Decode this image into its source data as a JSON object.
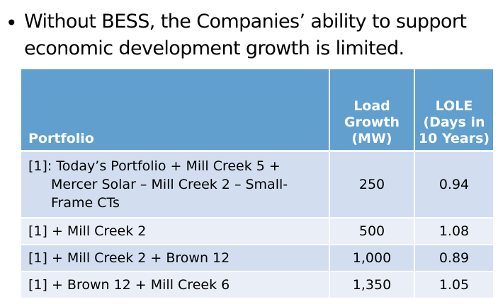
{
  "bullet": {
    "dot": "•",
    "text": "Without BESS, the Companies’ ability to support economic development growth is limited."
  },
  "table": {
    "headers": {
      "portfolio": "Portfolio",
      "load_growth": "Load Growth (MW)",
      "lole": "LOLE (Days in 10 Years)"
    },
    "rows": [
      {
        "portfolio": "[1]: Today’s Portfolio + Mill Creek 5 + Mercer Solar – Mill Creek 2 – Small-Frame CTs",
        "load_growth": "250",
        "lole": "0.94"
      },
      {
        "portfolio": "[1] + Mill Creek 2",
        "load_growth": "500",
        "lole": "1.08"
      },
      {
        "portfolio": "[1] + Mill Creek 2 + Brown 12",
        "load_growth": "1,000",
        "lole": "0.89"
      },
      {
        "portfolio": "[1] + Brown 12 + Mill Creek 6",
        "load_growth": "1,350",
        "lole": "1.05"
      }
    ]
  },
  "colors": {
    "header_bg": "#609fce",
    "row_dark": "#d2deef",
    "row_light": "#eaeff7"
  }
}
